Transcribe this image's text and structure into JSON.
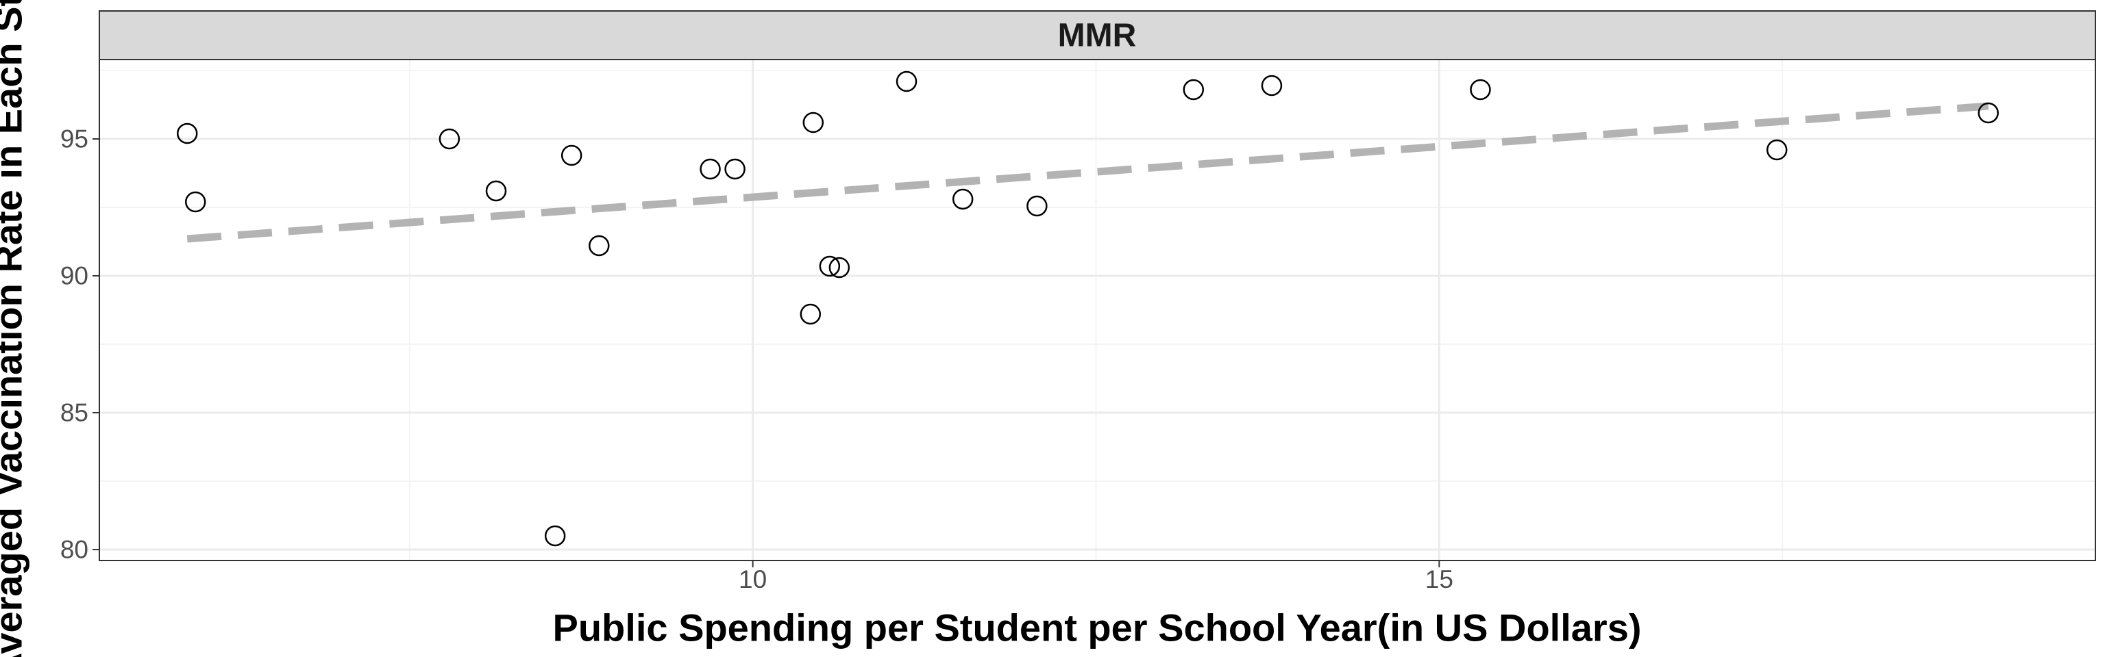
{
  "chart_data": {
    "type": "scatter",
    "facet_label": "MMR",
    "xlabel": "Public Spending per Student per School Year(in US Dollars)",
    "ylabel": "Averaged Vaccination Rate in Each State",
    "xlim": [
      5.24,
      19.78
    ],
    "ylim": [
      79.6,
      97.9
    ],
    "x_ticks": [
      10,
      15
    ],
    "x_tick_labels": [
      "10",
      "15"
    ],
    "y_ticks": [
      80,
      85,
      90,
      95
    ],
    "y_tick_labels": [
      "80",
      "85",
      "90",
      "95"
    ],
    "grid": true,
    "points": [
      {
        "x": 5.88,
        "y": 95.2
      },
      {
        "x": 5.94,
        "y": 92.7
      },
      {
        "x": 7.79,
        "y": 95.0
      },
      {
        "x": 8.13,
        "y": 93.1
      },
      {
        "x": 8.56,
        "y": 80.5
      },
      {
        "x": 8.68,
        "y": 94.4
      },
      {
        "x": 8.88,
        "y": 91.1
      },
      {
        "x": 9.69,
        "y": 93.9
      },
      {
        "x": 9.87,
        "y": 93.9
      },
      {
        "x": 10.42,
        "y": 88.6
      },
      {
        "x": 10.44,
        "y": 95.6
      },
      {
        "x": 10.56,
        "y": 90.35
      },
      {
        "x": 10.63,
        "y": 90.3
      },
      {
        "x": 11.12,
        "y": 97.1
      },
      {
        "x": 11.53,
        "y": 92.8
      },
      {
        "x": 12.07,
        "y": 92.55
      },
      {
        "x": 13.21,
        "y": 96.8
      },
      {
        "x": 13.78,
        "y": 96.95
      },
      {
        "x": 15.3,
        "y": 96.8
      },
      {
        "x": 17.46,
        "y": 94.6
      },
      {
        "x": 19.0,
        "y": 95.95
      }
    ],
    "trend_line": {
      "x": [
        5.88,
        19.0
      ],
      "y": [
        91.35,
        96.2
      ],
      "style": "dashed",
      "color": "#b3b3b3"
    },
    "colors": {
      "panel_border": "#333333",
      "strip_fill": "#d9d9d9",
      "grid_major": "#ebebeb",
      "grid_minor": "#f4f4f4",
      "point_stroke": "#000000"
    }
  }
}
